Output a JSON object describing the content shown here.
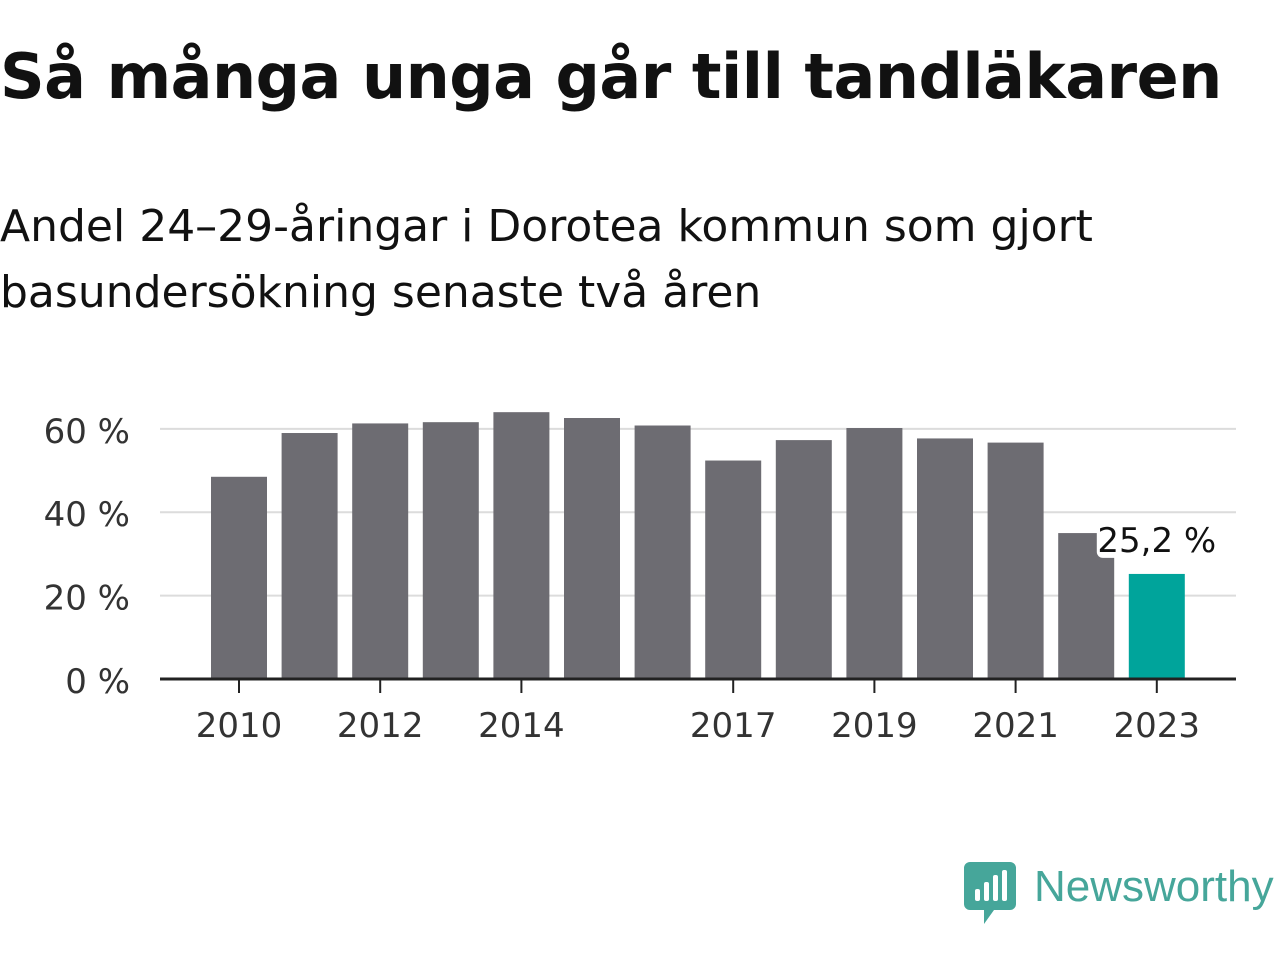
{
  "chart_data": {
    "type": "bar",
    "title": "Så många unga går till tandläkaren",
    "subtitle": "Andel 24–29-åringar i Dorotea kommun som gjort basundersökning senaste två åren",
    "categories": [
      "2010",
      "2011",
      "2012",
      "2013",
      "2014",
      "2015",
      "2016",
      "2017",
      "2018",
      "2019",
      "2020",
      "2021",
      "2022",
      "2023"
    ],
    "values": [
      48.5,
      59,
      61.3,
      61.6,
      64,
      62.6,
      60.8,
      52.4,
      57.3,
      60.2,
      57.7,
      56.7,
      35,
      25.2
    ],
    "x_tick_labels": [
      "2010",
      "2012",
      "2014",
      "2017",
      "2019",
      "2021",
      "2023"
    ],
    "y_ticks": [
      0,
      20,
      40,
      60
    ],
    "y_tick_labels": [
      "0 %",
      "20 %",
      "40 %",
      "60 %"
    ],
    "ylim": [
      0,
      65
    ],
    "grid": true,
    "highlight": {
      "category": "2023",
      "label": "25,2 %"
    },
    "colors": {
      "bar": "#6d6c72",
      "highlight": "#00a49b",
      "grid": "#dcdcdc",
      "axis": "#222222"
    }
  },
  "brand": {
    "name": "Newsworthy",
    "icon": "newsworthy-logo-icon",
    "color": "#46a69a"
  }
}
